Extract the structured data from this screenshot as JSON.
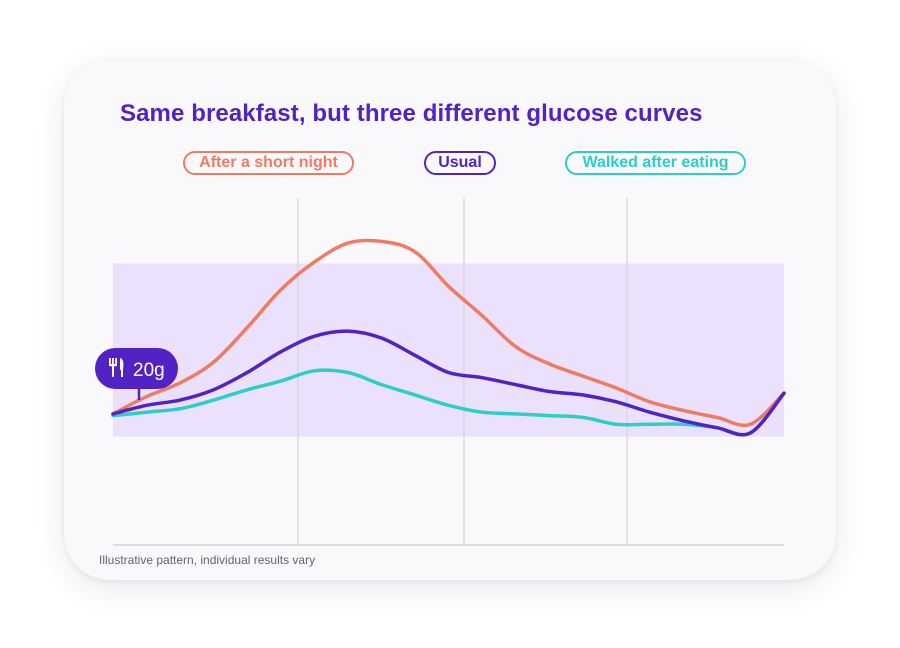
{
  "colors": {
    "short_night": "#ef7c62",
    "usual": "#5222c4",
    "walked": "#2ccfc6",
    "target_band": "#ece1fc",
    "title": "#5222c4",
    "gridline": "#d4d4d8",
    "card_background": "#f9f9fb"
  },
  "icons": {
    "meal_marker": "fork-knife-icon"
  },
  "footnote": "Illustrative pattern, individual results vary",
  "chart_data": {
    "type": "line",
    "title": "Same breakfast, but three different glucose curves",
    "xlabel": "",
    "ylabel": "",
    "x_tick_labels": [],
    "y_tick_labels": [],
    "grid": "vertical-only",
    "legend_position": "top",
    "xlim": [
      0,
      100
    ],
    "ylim": [
      0,
      100
    ],
    "target_range": [
      31.4,
      81.6
    ],
    "annotation": {
      "x": 0,
      "text": "20g"
    },
    "x": [
      0,
      5,
      10,
      15,
      20,
      25,
      30,
      35,
      40,
      45,
      50,
      55,
      60,
      65,
      70,
      75,
      80,
      85,
      90,
      95,
      100
    ],
    "series": [
      {
        "name": "After a short night",
        "values": [
          38,
          43,
          47,
          53,
          63,
          74,
          82,
          87.5,
          88,
          85,
          75,
          66.5,
          57.5,
          52.5,
          49,
          45.5,
          41.5,
          39,
          37,
          35,
          44
        ]
      },
      {
        "name": "Usual",
        "values": [
          38,
          40.5,
          42,
          45,
          50,
          56,
          60.5,
          62,
          60,
          55,
          50,
          48.5,
          46.5,
          44.5,
          43.5,
          41.5,
          38.5,
          36,
          34,
          32.5,
          44
        ]
      },
      {
        "name": "Walked after eating",
        "values": [
          37.5,
          38.5,
          39.5,
          42,
          45,
          47.5,
          50.5,
          50,
          46.5,
          43.5,
          40.5,
          38.5,
          38,
          37.5,
          37,
          35,
          35,
          35,
          34,
          32.5,
          44
        ]
      }
    ]
  }
}
